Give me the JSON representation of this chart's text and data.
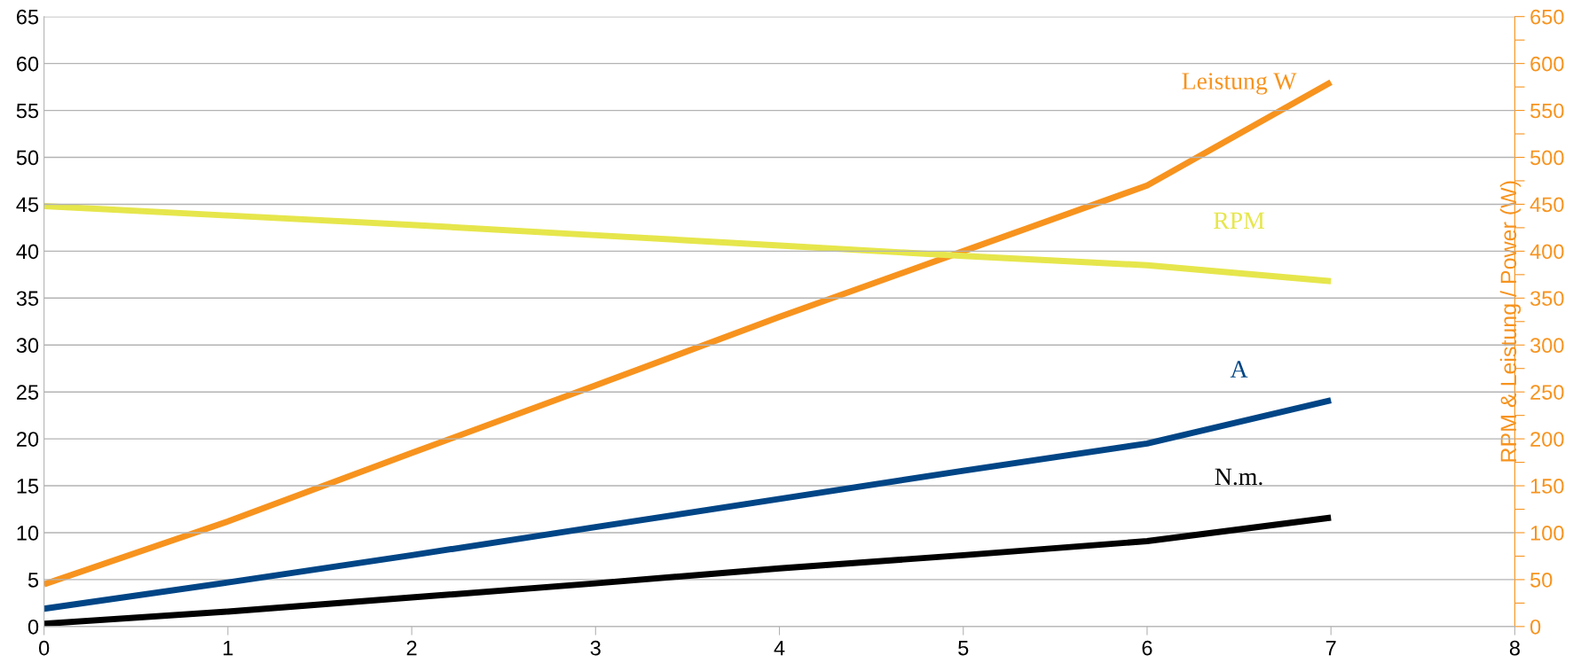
{
  "chart_data": {
    "type": "line",
    "ylabel": null,
    "y2label": "RPM & Leistung / Power (W)",
    "x": [
      0,
      1,
      2,
      3,
      4,
      5,
      6,
      7
    ],
    "xlim": [
      0,
      8
    ],
    "xticks": [
      0,
      1,
      2,
      3,
      4,
      5,
      6,
      7,
      8
    ],
    "ylim": [
      0,
      65
    ],
    "yticks": [
      0,
      5,
      10,
      15,
      20,
      25,
      30,
      35,
      40,
      45,
      50,
      55,
      60,
      65
    ],
    "y2lim": [
      0,
      650
    ],
    "y2ticks": [
      0,
      {
        "value": 25,
        "label": null
      },
      50,
      {
        "value": 75,
        "label": null
      },
      100,
      {
        "value": 125,
        "label": null
      },
      150,
      {
        "value": 175,
        "label": null
      },
      200,
      {
        "value": 225,
        "label": null
      },
      250,
      {
        "value": 275,
        "label": null
      },
      300,
      {
        "value": 325,
        "label": null
      },
      350,
      {
        "value": 375,
        "label": null
      },
      400,
      {
        "value": 425,
        "label": null
      },
      450,
      {
        "value": 475,
        "label": null
      },
      500,
      {
        "value": 525,
        "label": null
      },
      550,
      {
        "value": 575,
        "label": null
      },
      600,
      {
        "value": 625,
        "label": null
      },
      650
    ],
    "grid": "y",
    "line_style": "solid",
    "marker": "none",
    "series": [
      {
        "name": "Leistung W",
        "color": "#f7931e",
        "axis": "y2",
        "values": [
          45,
          112,
          185,
          257,
          330,
          400,
          470,
          580
        ]
      },
      {
        "name": "RPM",
        "color": "#e6e64c",
        "axis": "y2",
        "values": [
          448,
          438,
          428,
          417,
          406,
          395,
          385,
          368
        ]
      },
      {
        "name": "A",
        "color": "#004586",
        "axis": "y",
        "values": [
          1.9,
          4.7,
          7.6,
          10.6,
          13.6,
          16.6,
          19.5,
          24.1
        ]
      },
      {
        "name": "N.m.",
        "color": "#000000",
        "axis": "y",
        "values": [
          0.3,
          1.6,
          3.1,
          4.6,
          6.2,
          7.6,
          9.1,
          11.6
        ]
      }
    ]
  }
}
